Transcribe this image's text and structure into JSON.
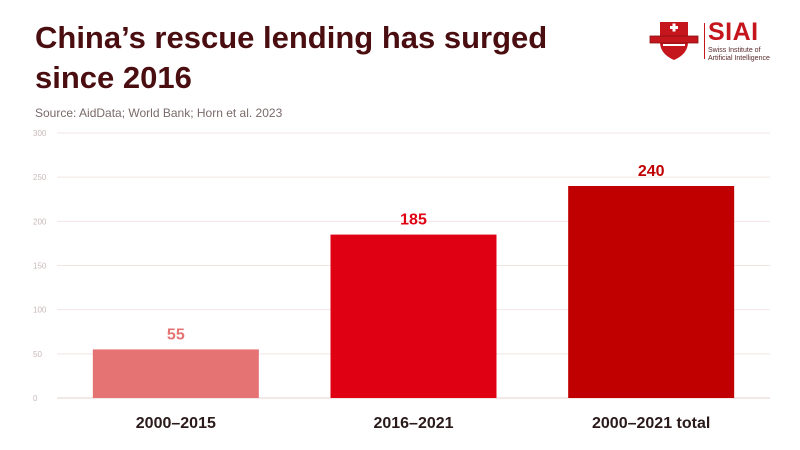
{
  "header": {
    "title": "China’s rescue lending has surged since 2016",
    "source": "Source: AidData; World Bank; Horn et al. 2023"
  },
  "logo": {
    "name": "SIAI",
    "subtitle_line1": "Swiss Institute of",
    "subtitle_line2": "Artificial Intelligence"
  },
  "colors": {
    "title": "#4a0d10",
    "bar_light": "#e57373",
    "bar_mid": "#e00014",
    "bar_dark": "#c00000"
  },
  "chart_data": {
    "type": "bar",
    "title": "China’s rescue lending has surged since 2016",
    "categories": [
      "2000–2015",
      "2016–2021",
      "2000–2021 total"
    ],
    "values": [
      55,
      185,
      240
    ],
    "bar_colors": [
      "#e57373",
      "#e00014",
      "#c00000"
    ],
    "ylim": [
      0,
      300
    ],
    "yticks": [
      0,
      50,
      100,
      150,
      200,
      250,
      300
    ],
    "grid": true,
    "data_labels": true
  }
}
